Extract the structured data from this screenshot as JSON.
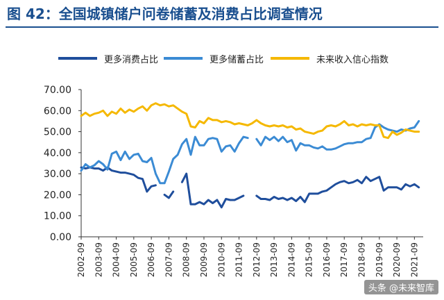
{
  "title": "图 42：全国城镇储户问卷储蓄及消费占比调查情况",
  "watermark": "头条 @未来智库",
  "legend": [
    {
      "label": "更多消费占比",
      "color": "#1f4e9c"
    },
    {
      "label": "更多储蓄占比",
      "color": "#3b8bd4"
    },
    {
      "label": "未来收入信心指数",
      "color": "#f5b800"
    }
  ],
  "chart_data": {
    "type": "line",
    "title": "全国城镇储户问卷储蓄及消费占比调查情况",
    "xlabel": "",
    "ylabel": "",
    "ylim": [
      0,
      70
    ],
    "yticks": [
      "0.00",
      "10.00",
      "20.00",
      "30.00",
      "40.00",
      "50.00",
      "60.00",
      "70.00"
    ],
    "xticks": [
      "2002-09",
      "2003-09",
      "2004-09",
      "2005-09",
      "2006-09",
      "2007-09",
      "2008-09",
      "2009-09",
      "2010-09",
      "2011-09",
      "2012-09",
      "2013-09",
      "2014-09",
      "2015-09",
      "2016-09",
      "2017-09",
      "2018-09",
      "2019-09",
      "2020-09",
      "2021-09"
    ],
    "grid": false,
    "legend_position": "top",
    "x_range": [
      "2002-09",
      "2022-03"
    ],
    "series": [
      {
        "name": "更多消费占比",
        "color": "#1f4e9c",
        "segments": [
          [
            [
              "2002-09",
              33
            ],
            [
              "2002-12",
              32.5
            ],
            [
              "2003-03",
              33
            ],
            [
              "2003-06",
              32.5
            ],
            [
              "2003-09",
              32.5
            ],
            [
              "2003-12",
              31.5
            ],
            [
              "2004-03",
              33
            ],
            [
              "2004-06",
              31.5
            ],
            [
              "2004-09",
              31
            ],
            [
              "2004-12",
              30.5
            ],
            [
              "2005-03",
              30.5
            ],
            [
              "2005-06",
              30
            ],
            [
              "2005-09",
              29.5
            ],
            [
              "2005-12",
              28
            ],
            [
              "2006-03",
              27.5
            ],
            [
              "2006-06",
              21.5
            ],
            [
              "2006-09",
              24
            ],
            [
              "2006-12",
              24.5
            ]
          ],
          [
            [
              "2007-06",
              20
            ],
            [
              "2007-09",
              18.5
            ],
            [
              "2007-12",
              21.5
            ]
          ],
          [
            [
              "2008-06",
              26
            ],
            [
              "2008-09",
              30
            ],
            [
              "2008-12",
              15.5
            ],
            [
              "2009-03",
              15.5
            ],
            [
              "2009-06",
              16.5
            ],
            [
              "2009-09",
              15.5
            ],
            [
              "2009-12",
              17.5
            ],
            [
              "2010-03",
              16
            ],
            [
              "2010-06",
              17.5
            ],
            [
              "2010-09",
              14
            ],
            [
              "2010-12",
              18
            ],
            [
              "2011-03",
              17.5
            ],
            [
              "2011-06",
              17.5
            ],
            [
              "2011-09",
              18.5
            ],
            [
              "2011-12",
              19.5
            ]
          ],
          [
            [
              "2012-09",
              19.5
            ],
            [
              "2012-12",
              18
            ],
            [
              "2013-03",
              18
            ],
            [
              "2013-06",
              17.5
            ],
            [
              "2013-09",
              19
            ],
            [
              "2013-12",
              18
            ],
            [
              "2014-03",
              18.5
            ],
            [
              "2014-06",
              17.5
            ],
            [
              "2014-09",
              18.5
            ],
            [
              "2014-12",
              17
            ],
            [
              "2015-03",
              19
            ],
            [
              "2015-06",
              16.5
            ],
            [
              "2015-09",
              20.5
            ],
            [
              "2015-12",
              20.5
            ],
            [
              "2016-03",
              20.5
            ],
            [
              "2016-06",
              21.5
            ],
            [
              "2016-09",
              22
            ],
            [
              "2016-12",
              23.5
            ],
            [
              "2017-03",
              25
            ],
            [
              "2017-06",
              26
            ],
            [
              "2017-09",
              26.5
            ],
            [
              "2017-12",
              25.5
            ],
            [
              "2018-03",
              26
            ],
            [
              "2018-06",
              27
            ],
            [
              "2018-09",
              25.5
            ],
            [
              "2018-12",
              28.5
            ],
            [
              "2019-03",
              26.5
            ],
            [
              "2019-06",
              27.5
            ],
            [
              "2019-09",
              28.5
            ],
            [
              "2019-12",
              22
            ],
            [
              "2020-03",
              23.5
            ],
            [
              "2020-06",
              23.5
            ],
            [
              "2020-09",
              23.5
            ],
            [
              "2020-12",
              22.5
            ],
            [
              "2021-03",
              25
            ],
            [
              "2021-06",
              24
            ],
            [
              "2021-09",
              25
            ],
            [
              "2021-12",
              23.5
            ]
          ]
        ]
      },
      {
        "name": "更多储蓄占比",
        "color": "#3b8bd4",
        "segments": [
          [
            [
              "2002-09",
              31.5
            ],
            [
              "2002-12",
              34.5
            ],
            [
              "2003-03",
              33
            ],
            [
              "2003-06",
              34
            ],
            [
              "2003-09",
              36
            ],
            [
              "2003-12",
              34.5
            ],
            [
              "2004-03",
              32
            ],
            [
              "2004-06",
              39.5
            ],
            [
              "2004-09",
              40.5
            ],
            [
              "2004-12",
              36.5
            ],
            [
              "2005-03",
              40.5
            ],
            [
              "2005-06",
              37
            ],
            [
              "2005-09",
              39
            ],
            [
              "2005-12",
              39.5
            ],
            [
              "2006-03",
              36
            ],
            [
              "2006-06",
              35.5
            ],
            [
              "2006-09",
              37.5
            ],
            [
              "2006-12",
              30
            ],
            [
              "2007-03",
              25.5
            ],
            [
              "2007-06",
              25.5
            ],
            [
              "2007-09",
              31
            ],
            [
              "2007-12",
              37
            ],
            [
              "2008-03",
              39
            ],
            [
              "2008-06",
              44
            ],
            [
              "2008-09",
              46.5
            ],
            [
              "2008-12",
              39
            ],
            [
              "2009-03",
              47.5
            ],
            [
              "2009-06",
              43.5
            ],
            [
              "2009-09",
              43.5
            ],
            [
              "2009-12",
              46.5
            ],
            [
              "2010-03",
              47
            ],
            [
              "2010-06",
              46.5
            ],
            [
              "2010-09",
              40.5
            ],
            [
              "2010-12",
              43
            ],
            [
              "2011-03",
              43.5
            ],
            [
              "2011-06",
              40.5
            ],
            [
              "2011-09",
              44.5
            ],
            [
              "2011-12",
              47.5
            ],
            [
              "2012-03",
              47
            ]
          ],
          [
            [
              "2012-09",
              46.5
            ],
            [
              "2012-12",
              43.5
            ],
            [
              "2013-03",
              47.5
            ],
            [
              "2013-06",
              46
            ],
            [
              "2013-09",
              47.5
            ],
            [
              "2013-12",
              45.5
            ],
            [
              "2014-03",
              47.5
            ],
            [
              "2014-06",
              45
            ],
            [
              "2014-09",
              46
            ],
            [
              "2014-12",
              41
            ],
            [
              "2015-03",
              44.5
            ],
            [
              "2015-06",
              43.5
            ],
            [
              "2015-09",
              43.5
            ],
            [
              "2015-12",
              42.5
            ],
            [
              "2016-03",
              42
            ],
            [
              "2016-06",
              43
            ],
            [
              "2016-09",
              41.5
            ],
            [
              "2016-12",
              41.5
            ],
            [
              "2017-03",
              42
            ],
            [
              "2017-06",
              43
            ],
            [
              "2017-09",
              44
            ],
            [
              "2017-12",
              44.5
            ],
            [
              "2018-03",
              44.5
            ],
            [
              "2018-06",
              45
            ],
            [
              "2018-09",
              45
            ],
            [
              "2018-12",
              46.5
            ],
            [
              "2019-03",
              47
            ],
            [
              "2019-06",
              52
            ],
            [
              "2019-09",
              53.5
            ],
            [
              "2019-12",
              52
            ],
            [
              "2020-03",
              51
            ],
            [
              "2020-06",
              50.5
            ],
            [
              "2020-09",
              50
            ],
            [
              "2020-12",
              51
            ],
            [
              "2021-03",
              50.5
            ],
            [
              "2021-06",
              51.5
            ],
            [
              "2021-09",
              52
            ],
            [
              "2021-12",
              55
            ]
          ]
        ]
      },
      {
        "name": "未来收入信心指数",
        "color": "#f5b800",
        "segments": [
          [
            [
              "2002-09",
              57.5
            ],
            [
              "2002-12",
              59
            ],
            [
              "2003-03",
              57.5
            ],
            [
              "2003-06",
              58.5
            ],
            [
              "2003-09",
              59
            ],
            [
              "2003-12",
              60
            ],
            [
              "2004-03",
              57.5
            ],
            [
              "2004-06",
              59.5
            ],
            [
              "2004-09",
              58.5
            ],
            [
              "2004-12",
              61
            ],
            [
              "2005-03",
              59
            ],
            [
              "2005-06",
              60.5
            ],
            [
              "2005-09",
              59.5
            ],
            [
              "2005-12",
              61
            ],
            [
              "2006-03",
              62
            ],
            [
              "2006-06",
              60
            ],
            [
              "2006-09",
              62.5
            ],
            [
              "2006-12",
              63.5
            ],
            [
              "2007-03",
              62.5
            ],
            [
              "2007-06",
              63
            ],
            [
              "2007-09",
              62
            ],
            [
              "2007-12",
              62.5
            ],
            [
              "2008-03",
              61
            ],
            [
              "2008-06",
              59.5
            ],
            [
              "2008-09",
              58.5
            ],
            [
              "2008-12",
              52.5
            ],
            [
              "2009-03",
              52
            ],
            [
              "2009-06",
              55
            ],
            [
              "2009-09",
              54
            ],
            [
              "2009-12",
              56.5
            ],
            [
              "2010-03",
              55.5
            ],
            [
              "2010-06",
              55.5
            ],
            [
              "2010-09",
              54.5
            ],
            [
              "2010-12",
              55
            ],
            [
              "2011-03",
              54.5
            ],
            [
              "2011-06",
              53.5
            ],
            [
              "2011-09",
              54
            ],
            [
              "2011-12",
              53.5
            ],
            [
              "2012-03",
              53
            ],
            [
              "2012-06",
              54
            ],
            [
              "2012-09",
              55.5
            ],
            [
              "2012-12",
              54
            ],
            [
              "2013-03",
              53
            ],
            [
              "2013-06",
              52.5
            ],
            [
              "2013-09",
              53
            ],
            [
              "2013-12",
              52.5
            ],
            [
              "2014-03",
              53
            ],
            [
              "2014-06",
              52
            ],
            [
              "2014-09",
              52.5
            ],
            [
              "2014-12",
              51
            ],
            [
              "2015-03",
              51.5
            ],
            [
              "2015-06",
              50
            ],
            [
              "2015-09",
              49.5
            ],
            [
              "2015-12",
              49
            ],
            [
              "2016-03",
              50
            ],
            [
              "2016-06",
              50.5
            ],
            [
              "2016-09",
              52.5
            ],
            [
              "2016-12",
              53
            ],
            [
              "2017-03",
              52.5
            ],
            [
              "2017-06",
              53.5
            ],
            [
              "2017-09",
              55
            ],
            [
              "2017-12",
              53
            ],
            [
              "2018-03",
              53.5
            ],
            [
              "2018-06",
              52.5
            ],
            [
              "2018-09",
              53.5
            ],
            [
              "2018-12",
              53
            ],
            [
              "2019-03",
              53.5
            ],
            [
              "2019-06",
              53
            ],
            [
              "2019-09",
              53
            ],
            [
              "2019-12",
              47.5
            ],
            [
              "2020-03",
              47
            ],
            [
              "2020-06",
              50
            ],
            [
              "2020-09",
              48.5
            ],
            [
              "2020-12",
              49.5
            ],
            [
              "2021-03",
              51
            ],
            [
              "2021-06",
              50.5
            ],
            [
              "2021-09",
              50
            ],
            [
              "2021-12",
              50
            ]
          ]
        ]
      }
    ]
  }
}
